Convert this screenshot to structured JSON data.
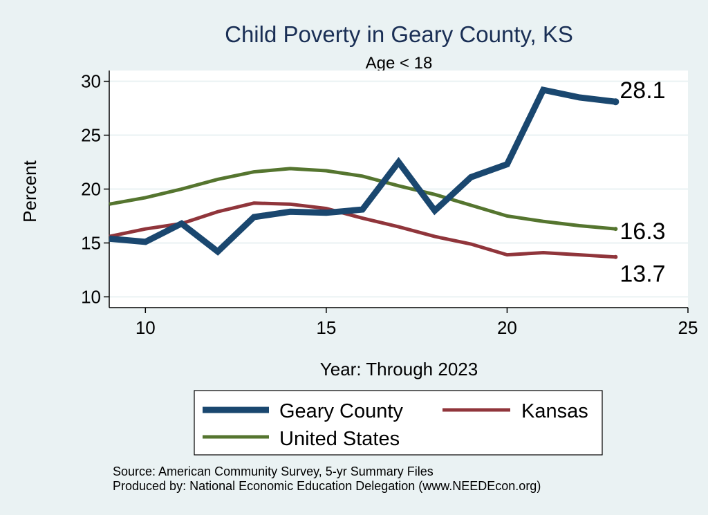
{
  "chart_data": {
    "type": "line",
    "title": "Child Poverty in Geary County, KS",
    "subtitle": "Age < 18",
    "xlabel": "Year: Through 2023",
    "ylabel": "Percent",
    "xlim": [
      9,
      25
    ],
    "ylim": [
      9,
      31
    ],
    "xticks": [
      10,
      15,
      20,
      25
    ],
    "yticks": [
      10,
      15,
      20,
      25,
      30
    ],
    "grid": true,
    "series": [
      {
        "name": "Geary County",
        "color": "#1a476f",
        "x": [
          9,
          10,
          11,
          12,
          13,
          14,
          15,
          16,
          17,
          18,
          19,
          20,
          21,
          22,
          23
        ],
        "values": [
          15.4,
          15.1,
          16.8,
          14.2,
          17.4,
          17.9,
          17.8,
          18.1,
          22.5,
          18.0,
          21.1,
          22.3,
          29.2,
          28.5,
          28.1
        ],
        "end_label": "28.1"
      },
      {
        "name": "Kansas",
        "color": "#90353b",
        "x": [
          9,
          10,
          11,
          12,
          13,
          14,
          15,
          16,
          17,
          18,
          19,
          20,
          21,
          22,
          23
        ],
        "values": [
          15.6,
          16.3,
          16.8,
          17.9,
          18.7,
          18.6,
          18.2,
          17.3,
          16.5,
          15.6,
          14.9,
          13.9,
          14.1,
          13.9,
          13.7
        ],
        "end_label": "13.7"
      },
      {
        "name": "United States",
        "color": "#55752f",
        "x": [
          9,
          10,
          11,
          12,
          13,
          14,
          15,
          16,
          17,
          18,
          19,
          20,
          21,
          22,
          23
        ],
        "values": [
          18.6,
          19.2,
          20.0,
          20.9,
          21.6,
          21.9,
          21.7,
          21.2,
          20.3,
          19.5,
          18.5,
          17.5,
          17.0,
          16.6,
          16.3
        ],
        "end_label": "16.3"
      }
    ],
    "legend": {
      "position": "bottom",
      "entries": [
        "Geary County",
        "Kansas",
        "United States"
      ]
    },
    "notes": [
      "Source: American Community Survey, 5-yr Summary Files",
      "Produced by: National Economic Education Delegation (www.NEEDEcon.org)"
    ]
  },
  "colors": {
    "background": "#eaf2f3",
    "plot_background": "#ffffff",
    "grid": "#eaf2f3",
    "title": "#1a2f55"
  }
}
